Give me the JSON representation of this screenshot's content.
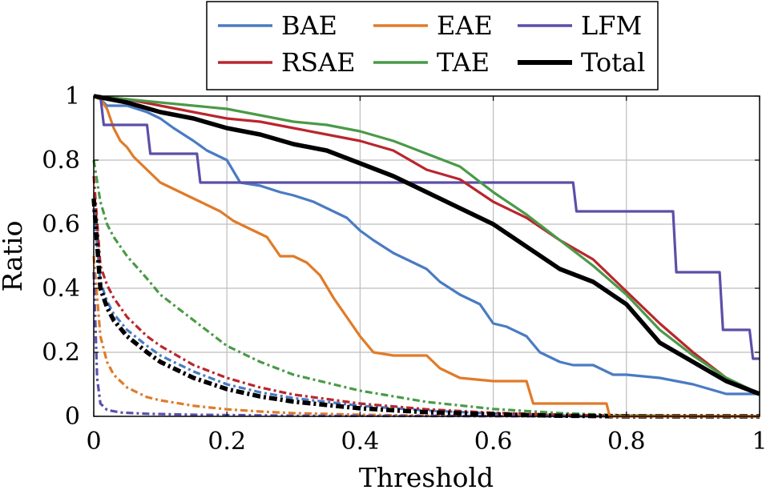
{
  "chart_data": {
    "type": "line",
    "xlabel": "Threshold",
    "ylabel": "Ratio",
    "xlim": [
      0,
      1
    ],
    "ylim": [
      0,
      1
    ],
    "xticks": [
      0,
      0.2,
      0.4,
      0.6,
      0.8,
      1
    ],
    "yticks": [
      0,
      0.2,
      0.4,
      0.6,
      0.8,
      1
    ],
    "xtick_labels": [
      "0",
      "0.2",
      "0.4",
      "0.6",
      "0.8",
      "1"
    ],
    "ytick_labels": [
      "0",
      "0.2",
      "0.4",
      "0.6",
      "0.8",
      "1"
    ],
    "grid": true,
    "legend_position": "top-center",
    "series": [
      {
        "name": "BAE",
        "color": "#4a7bc3",
        "style": "solid",
        "x": [
          0,
          0.01,
          0.02,
          0.05,
          0.08,
          0.1,
          0.12,
          0.15,
          0.17,
          0.2,
          0.22,
          0.25,
          0.28,
          0.3,
          0.33,
          0.35,
          0.38,
          0.4,
          0.42,
          0.45,
          0.48,
          0.5,
          0.52,
          0.55,
          0.58,
          0.6,
          0.62,
          0.65,
          0.67,
          0.7,
          0.72,
          0.75,
          0.78,
          0.8,
          0.85,
          0.9,
          0.95,
          1.0
        ],
        "y": [
          1.0,
          0.99,
          0.97,
          0.97,
          0.95,
          0.93,
          0.9,
          0.86,
          0.83,
          0.8,
          0.73,
          0.72,
          0.7,
          0.69,
          0.67,
          0.65,
          0.62,
          0.58,
          0.55,
          0.51,
          0.48,
          0.46,
          0.42,
          0.38,
          0.35,
          0.29,
          0.28,
          0.25,
          0.2,
          0.17,
          0.16,
          0.16,
          0.13,
          0.13,
          0.12,
          0.1,
          0.07,
          0.07
        ]
      },
      {
        "name": "EAE",
        "color": "#e07b28",
        "style": "solid",
        "x": [
          0,
          0.01,
          0.02,
          0.03,
          0.04,
          0.05,
          0.06,
          0.07,
          0.08,
          0.09,
          0.1,
          0.12,
          0.14,
          0.16,
          0.19,
          0.21,
          0.24,
          0.26,
          0.28,
          0.3,
          0.32,
          0.34,
          0.36,
          0.38,
          0.4,
          0.42,
          0.45,
          0.5,
          0.52,
          0.55,
          0.6,
          0.65,
          0.66,
          0.7,
          0.77,
          0.775,
          0.8,
          0.85,
          0.9,
          0.95,
          1.0
        ],
        "y": [
          1.0,
          0.99,
          0.96,
          0.9,
          0.86,
          0.84,
          0.81,
          0.79,
          0.77,
          0.75,
          0.73,
          0.71,
          0.69,
          0.67,
          0.64,
          0.61,
          0.58,
          0.56,
          0.5,
          0.5,
          0.48,
          0.44,
          0.37,
          0.31,
          0.25,
          0.2,
          0.19,
          0.19,
          0.15,
          0.12,
          0.11,
          0.11,
          0.04,
          0.04,
          0.04,
          0.0,
          0.0,
          0.0,
          0.0,
          0.0,
          0.0
        ]
      },
      {
        "name": "LFM",
        "color": "#5b4fa8",
        "style": "solid",
        "x": [
          0,
          0.01,
          0.015,
          0.04,
          0.06,
          0.08,
          0.085,
          0.1,
          0.13,
          0.155,
          0.16,
          0.2,
          0.3,
          0.4,
          0.5,
          0.6,
          0.7,
          0.72,
          0.725,
          0.8,
          0.87,
          0.875,
          0.93,
          0.94,
          0.945,
          0.985,
          0.99,
          1.0
        ],
        "y": [
          1.0,
          1.0,
          0.91,
          0.91,
          0.91,
          0.91,
          0.82,
          0.82,
          0.82,
          0.82,
          0.73,
          0.73,
          0.73,
          0.73,
          0.73,
          0.73,
          0.73,
          0.73,
          0.64,
          0.64,
          0.64,
          0.45,
          0.45,
          0.45,
          0.27,
          0.27,
          0.18,
          0.18
        ]
      },
      {
        "name": "RSAE",
        "color": "#b9262d",
        "style": "solid",
        "x": [
          0,
          0.05,
          0.1,
          0.15,
          0.2,
          0.25,
          0.3,
          0.35,
          0.4,
          0.45,
          0.5,
          0.55,
          0.6,
          0.65,
          0.7,
          0.75,
          0.8,
          0.85,
          0.9,
          0.95,
          1.0
        ],
        "y": [
          1.0,
          0.99,
          0.97,
          0.95,
          0.93,
          0.92,
          0.9,
          0.88,
          0.86,
          0.83,
          0.77,
          0.74,
          0.67,
          0.62,
          0.55,
          0.49,
          0.39,
          0.29,
          0.2,
          0.12,
          0.07
        ]
      },
      {
        "name": "TAE",
        "color": "#4a9a48",
        "style": "solid",
        "x": [
          0,
          0.05,
          0.1,
          0.15,
          0.2,
          0.25,
          0.3,
          0.35,
          0.4,
          0.45,
          0.5,
          0.55,
          0.6,
          0.65,
          0.7,
          0.75,
          0.8,
          0.85,
          0.9,
          0.95,
          1.0
        ],
        "y": [
          1.0,
          0.99,
          0.98,
          0.97,
          0.96,
          0.94,
          0.92,
          0.91,
          0.89,
          0.86,
          0.82,
          0.78,
          0.7,
          0.63,
          0.55,
          0.47,
          0.38,
          0.27,
          0.19,
          0.12,
          0.07
        ]
      },
      {
        "name": "Total",
        "color": "#000000",
        "style": "solid",
        "x": [
          0,
          0.05,
          0.1,
          0.15,
          0.2,
          0.25,
          0.3,
          0.35,
          0.4,
          0.45,
          0.5,
          0.55,
          0.6,
          0.65,
          0.7,
          0.75,
          0.8,
          0.85,
          0.9,
          0.95,
          1.0
        ],
        "y": [
          1.0,
          0.98,
          0.95,
          0.93,
          0.9,
          0.88,
          0.85,
          0.83,
          0.79,
          0.75,
          0.7,
          0.65,
          0.6,
          0.53,
          0.46,
          0.42,
          0.35,
          0.23,
          0.17,
          0.11,
          0.07
        ]
      },
      {
        "name": "",
        "color": "#4a7bc3",
        "style": "dashdot",
        "x": [
          0,
          0.01,
          0.02,
          0.03,
          0.05,
          0.08,
          0.1,
          0.15,
          0.2,
          0.25,
          0.3,
          0.4,
          0.5,
          0.6,
          0.7,
          0.8,
          0.9,
          1.0
        ],
        "y": [
          0.65,
          0.42,
          0.36,
          0.32,
          0.27,
          0.22,
          0.19,
          0.14,
          0.1,
          0.075,
          0.057,
          0.033,
          0.018,
          0.009,
          0.004,
          0.001,
          0.0,
          0.0
        ]
      },
      {
        "name": "",
        "color": "#e07b28",
        "style": "dashdot",
        "x": [
          0,
          0.01,
          0.02,
          0.03,
          0.05,
          0.08,
          0.1,
          0.15,
          0.2,
          0.25,
          0.3,
          0.4,
          0.5,
          0.6,
          0.7,
          0.8,
          0.9,
          1.0
        ],
        "y": [
          0.5,
          0.25,
          0.17,
          0.13,
          0.09,
          0.06,
          0.05,
          0.033,
          0.022,
          0.015,
          0.01,
          0.005,
          0.002,
          0.001,
          0.0,
          0.0,
          0.0,
          0.0
        ]
      },
      {
        "name": "",
        "color": "#5b4fa8",
        "style": "dashdot",
        "x": [
          0,
          0.005,
          0.01,
          0.02,
          0.04,
          0.08,
          0.15,
          0.3,
          0.5,
          0.7,
          1.0
        ],
        "y": [
          0.45,
          0.12,
          0.04,
          0.02,
          0.012,
          0.008,
          0.005,
          0.002,
          0.001,
          0.0,
          0.0
        ]
      },
      {
        "name": "",
        "color": "#b9262d",
        "style": "dashdot",
        "x": [
          0,
          0.01,
          0.02,
          0.03,
          0.05,
          0.08,
          0.1,
          0.15,
          0.2,
          0.25,
          0.3,
          0.4,
          0.5,
          0.6,
          0.7,
          0.8,
          0.9,
          1.0
        ],
        "y": [
          0.75,
          0.47,
          0.41,
          0.37,
          0.31,
          0.25,
          0.22,
          0.16,
          0.12,
          0.09,
          0.068,
          0.04,
          0.022,
          0.011,
          0.005,
          0.002,
          0.0,
          0.0
        ]
      },
      {
        "name": "",
        "color": "#4a9a48",
        "style": "dashdot",
        "x": [
          0,
          0.01,
          0.02,
          0.03,
          0.05,
          0.08,
          0.1,
          0.15,
          0.2,
          0.25,
          0.3,
          0.4,
          0.5,
          0.6,
          0.7,
          0.8,
          0.9,
          1.0
        ],
        "y": [
          0.8,
          0.67,
          0.6,
          0.56,
          0.5,
          0.43,
          0.38,
          0.3,
          0.22,
          0.17,
          0.13,
          0.08,
          0.045,
          0.023,
          0.01,
          0.003,
          0.001,
          0.0
        ]
      },
      {
        "name": "",
        "color": "#000000",
        "style": "dashdot",
        "x": [
          0,
          0.01,
          0.02,
          0.03,
          0.05,
          0.08,
          0.1,
          0.15,
          0.2,
          0.25,
          0.3,
          0.4,
          0.5,
          0.6,
          0.7,
          0.8,
          0.9,
          1.0
        ],
        "y": [
          0.68,
          0.4,
          0.34,
          0.3,
          0.25,
          0.2,
          0.17,
          0.12,
          0.085,
          0.062,
          0.046,
          0.025,
          0.013,
          0.006,
          0.002,
          0.0,
          0.0,
          0.0
        ]
      }
    ]
  }
}
